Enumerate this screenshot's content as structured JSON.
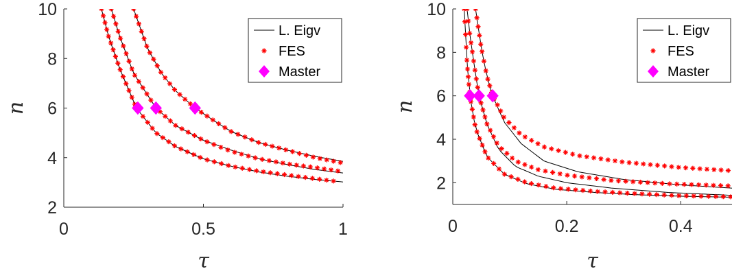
{
  "chart_data": [
    {
      "type": "line",
      "xlabel": "τ",
      "ylabel": "n",
      "xlim": [
        0,
        1
      ],
      "ylim": [
        2,
        10
      ],
      "xticks": [
        "0",
        "0.5",
        "1"
      ],
      "yticks": [
        "2",
        "4",
        "6",
        "8",
        "10"
      ],
      "legend": {
        "placement": "top-right",
        "entries": [
          "L. Eigv",
          "FES",
          "Master"
        ]
      },
      "colors": {
        "line": "#000000",
        "fes": "#ff0000",
        "master": "#ff00ff"
      },
      "series": [
        {
          "name": "L. Eigv",
          "curves": [
            {
              "x": [
                0.135,
                0.16,
                0.2,
                0.26,
                0.33,
                0.4,
                0.5,
                0.6,
                0.7,
                0.8,
                0.9,
                1.0
              ],
              "y": [
                10,
                8.9,
                7.6,
                6.0,
                5.0,
                4.45,
                3.95,
                3.65,
                3.42,
                3.25,
                3.12,
                3.02
              ]
            },
            {
              "x": [
                0.17,
                0.2,
                0.25,
                0.33,
                0.4,
                0.5,
                0.6,
                0.7,
                0.8,
                0.9,
                1.0
              ],
              "y": [
                10,
                8.9,
                7.4,
                6.0,
                5.3,
                4.7,
                4.3,
                3.95,
                3.72,
                3.52,
                3.38
              ]
            },
            {
              "x": [
                0.25,
                0.3,
                0.35,
                0.4,
                0.47,
                0.55,
                0.6,
                0.7,
                0.8,
                0.9,
                1.0
              ],
              "y": [
                10,
                8.4,
                7.4,
                6.7,
                6.0,
                5.4,
                5.05,
                4.6,
                4.3,
                4.05,
                3.85
              ]
            }
          ]
        },
        {
          "name": "FES",
          "curves": [
            {
              "x": [
                0.135,
                0.16,
                0.2,
                0.26,
                0.33,
                0.4,
                0.5,
                0.6,
                0.7,
                0.8,
                0.9,
                0.97
              ],
              "y": [
                10,
                8.9,
                7.6,
                6.0,
                5.0,
                4.45,
                3.95,
                3.65,
                3.45,
                3.3,
                3.15,
                3.05
              ]
            },
            {
              "x": [
                0.17,
                0.2,
                0.25,
                0.33,
                0.4,
                0.5,
                0.6,
                0.7,
                0.8,
                0.9,
                0.99
              ],
              "y": [
                10,
                8.9,
                7.4,
                6.0,
                5.3,
                4.7,
                4.25,
                3.95,
                3.75,
                3.6,
                3.45
              ]
            },
            {
              "x": [
                0.25,
                0.3,
                0.35,
                0.4,
                0.47,
                0.55,
                0.6,
                0.7,
                0.8,
                0.9,
                1.0
              ],
              "y": [
                10,
                8.4,
                7.4,
                6.7,
                6.0,
                5.4,
                5.05,
                4.6,
                4.3,
                4.0,
                3.78
              ]
            }
          ]
        },
        {
          "name": "Master",
          "points": {
            "x": [
              0.265,
              0.33,
              0.47
            ],
            "y": [
              6,
              6,
              6
            ]
          }
        }
      ]
    },
    {
      "type": "line",
      "xlabel": "τ",
      "ylabel": "n",
      "xlim": [
        0,
        0.49
      ],
      "ylim": [
        1,
        10
      ],
      "xticks": [
        "0",
        "0.2",
        "0.4"
      ],
      "yticks": [
        "2",
        "4",
        "6",
        "8",
        "10"
      ],
      "legend": {
        "placement": "top-right",
        "entries": [
          "L. Eigv",
          "FES",
          "Master"
        ]
      },
      "colors": {
        "line": "#000000",
        "fes": "#ff0000",
        "master": "#ff00ff"
      },
      "series": [
        {
          "name": "L. Eigv",
          "curves": [
            {
              "x": [
                0.02,
                0.025,
                0.03,
                0.04,
                0.06,
                0.09,
                0.13,
                0.18,
                0.25,
                0.32,
                0.4,
                0.49
              ],
              "y": [
                10,
                7.5,
                6.0,
                4.5,
                3.2,
                2.4,
                1.95,
                1.7,
                1.55,
                1.45,
                1.38,
                1.33
              ]
            },
            {
              "x": [
                0.025,
                0.03,
                0.04,
                0.046,
                0.06,
                0.08,
                0.11,
                0.15,
                0.2,
                0.28,
                0.38,
                0.49
              ],
              "y": [
                10,
                8.8,
                7.0,
                6.0,
                4.7,
                3.55,
                2.75,
                2.3,
                2.0,
                1.75,
                1.55,
                1.42
              ]
            },
            {
              "x": [
                0.04,
                0.05,
                0.06,
                0.07,
                0.09,
                0.12,
                0.16,
                0.22,
                0.3,
                0.4,
                0.49
              ],
              "y": [
                10,
                8.2,
                6.9,
                6.0,
                4.8,
                3.8,
                3.0,
                2.5,
                2.15,
                1.9,
                1.75
              ]
            }
          ]
        },
        {
          "name": "FES",
          "curves": [
            {
              "x": [
                0.02,
                0.025,
                0.03,
                0.04,
                0.06,
                0.09,
                0.13,
                0.18,
                0.25,
                0.32,
                0.4,
                0.49
              ],
              "y": [
                10,
                7.5,
                6.0,
                4.5,
                3.2,
                2.4,
                2.0,
                1.75,
                1.6,
                1.5,
                1.4,
                1.35
              ]
            },
            {
              "x": [
                0.025,
                0.03,
                0.04,
                0.046,
                0.06,
                0.08,
                0.11,
                0.15,
                0.2,
                0.28,
                0.38,
                0.49
              ],
              "y": [
                10,
                8.8,
                7.0,
                6.0,
                4.7,
                3.7,
                3.0,
                2.6,
                2.35,
                2.1,
                1.95,
                1.85
              ]
            },
            {
              "x": [
                0.04,
                0.05,
                0.06,
                0.07,
                0.09,
                0.12,
                0.16,
                0.22,
                0.3,
                0.4,
                0.49
              ],
              "y": [
                10,
                8.2,
                6.9,
                6.0,
                5.0,
                4.2,
                3.65,
                3.25,
                2.95,
                2.7,
                2.55
              ]
            }
          ]
        },
        {
          "name": "Master",
          "points": {
            "x": [
              0.03,
              0.046,
              0.07
            ],
            "y": [
              6,
              6,
              6
            ]
          }
        }
      ]
    }
  ]
}
